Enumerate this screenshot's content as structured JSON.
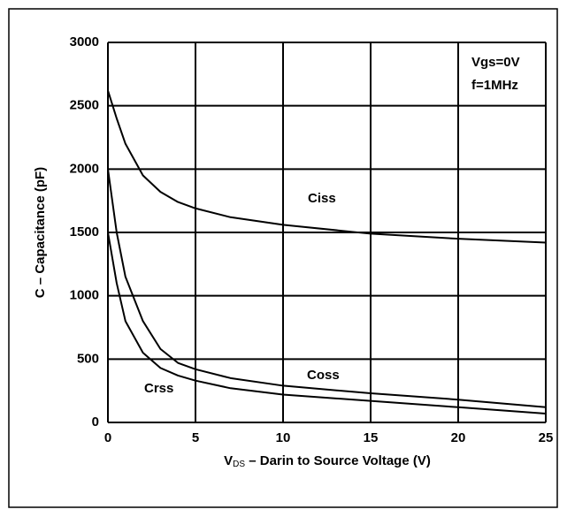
{
  "chart_data": {
    "type": "line",
    "y_label": "C – Capacitance   (pF)",
    "x_label_symbol": "V",
    "x_label_subscript": "DS",
    "x_label": " – Darin to Source Voltage   (V)",
    "annotations": [
      "Vgs=0V",
      "f=1MHz"
    ],
    "x": [
      0,
      0.5,
      1,
      2,
      3,
      4,
      5,
      7,
      10,
      15,
      20,
      25
    ],
    "series": [
      {
        "name": "Ciss",
        "color": "#000000",
        "values": [
          2620,
          2400,
          2200,
          1950,
          1820,
          1740,
          1690,
          1620,
          1560,
          1490,
          1450,
          1420
        ]
      },
      {
        "name": "Coss",
        "color": "#000000",
        "values": [
          2000,
          1500,
          1150,
          800,
          580,
          470,
          420,
          350,
          290,
          230,
          180,
          120
        ]
      },
      {
        "name": "Crss",
        "color": "#000000",
        "values": [
          1500,
          1100,
          800,
          550,
          430,
          370,
          330,
          270,
          220,
          170,
          120,
          70
        ]
      }
    ],
    "xlim": [
      0,
      25
    ],
    "xticks": [
      0,
      5,
      10,
      15,
      20,
      25
    ],
    "ylim": [
      0,
      3000
    ],
    "yticks": [
      0,
      500,
      1000,
      1500,
      2000,
      2500,
      3000
    ],
    "grid": true
  }
}
